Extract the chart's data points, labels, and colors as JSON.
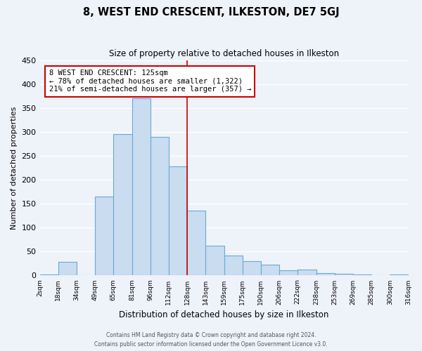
{
  "title": "8, WEST END CRESCENT, ILKESTON, DE7 5GJ",
  "subtitle": "Size of property relative to detached houses in Ilkeston",
  "xlabel": "Distribution of detached houses by size in Ilkeston",
  "ylabel": "Number of detached properties",
  "bar_labels": [
    "2sqm",
    "18sqm",
    "34sqm",
    "49sqm",
    "65sqm",
    "81sqm",
    "96sqm",
    "112sqm",
    "128sqm",
    "143sqm",
    "159sqm",
    "175sqm",
    "190sqm",
    "206sqm",
    "222sqm",
    "238sqm",
    "253sqm",
    "269sqm",
    "285sqm",
    "300sqm",
    "316sqm"
  ],
  "bar_heights": [
    2,
    28,
    0,
    165,
    295,
    370,
    290,
    228,
    135,
    62,
    42,
    30,
    22,
    11,
    12,
    5,
    4,
    2,
    0,
    2
  ],
  "bar_color": "#c9dcf0",
  "bar_edge_color": "#6aaad4",
  "vline_color": "#cc0000",
  "vline_x": 8,
  "annotation_title": "8 WEST END CRESCENT: 125sqm",
  "annotation_line1": "← 78% of detached houses are smaller (1,322)",
  "annotation_line2": "21% of semi-detached houses are larger (357) →",
  "ylim": [
    0,
    450
  ],
  "yticks": [
    0,
    50,
    100,
    150,
    200,
    250,
    300,
    350,
    400,
    450
  ],
  "footer1": "Contains HM Land Registry data © Crown copyright and database right 2024.",
  "footer2": "Contains public sector information licensed under the Open Government Licence v3.0.",
  "background_color": "#eef2f9",
  "grid_color": "#ffffff"
}
